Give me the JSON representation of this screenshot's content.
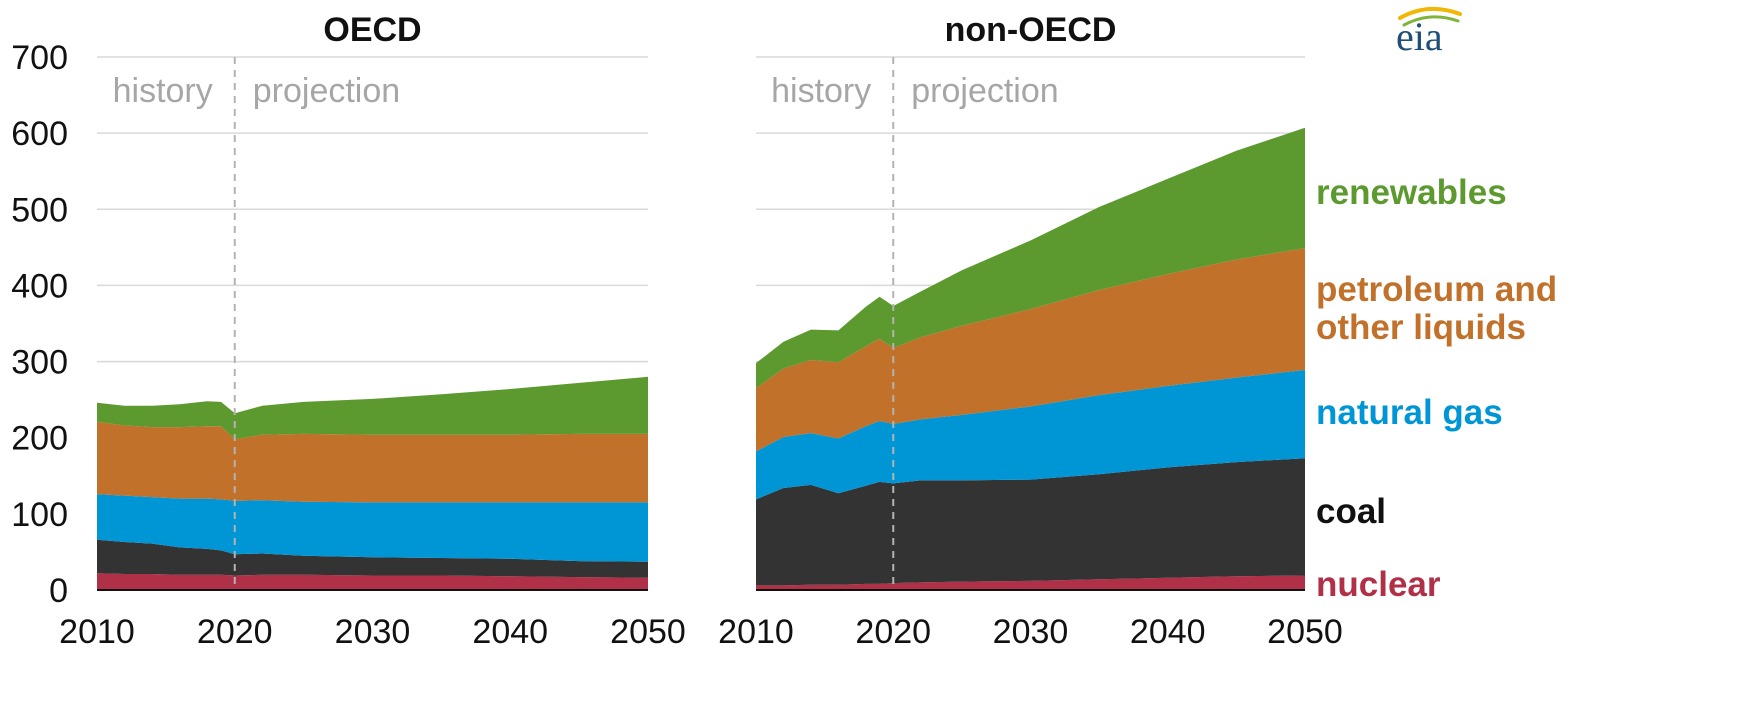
{
  "chart_data": {
    "type": "area",
    "stacked": true,
    "logo": "eia",
    "yticks": [
      0,
      100,
      200,
      300,
      400,
      500,
      600,
      700
    ],
    "ylim": [
      0,
      700
    ],
    "xticks": [
      2010,
      2020,
      2030,
      2040,
      2050
    ],
    "xlim": [
      2010,
      2050
    ],
    "history_end": 2020,
    "legend": [
      {
        "key": "renewables",
        "lines": [
          "renewables"
        ],
        "color": "#5c9a2f"
      },
      {
        "key": "petroleum",
        "lines": [
          "petroleum and",
          "other liquids"
        ],
        "color": "#c1712a"
      },
      {
        "key": "gas",
        "lines": [
          "natural gas"
        ],
        "color": "#0096d6"
      },
      {
        "key": "coal",
        "lines": [
          "coal"
        ],
        "color": "#111111"
      },
      {
        "key": "nuclear",
        "lines": [
          "nuclear"
        ],
        "color": "#b03048"
      }
    ],
    "series_colors": {
      "nuclear": "#b03048",
      "coal": "#333333",
      "gas": "#0096d6",
      "petroleum": "#c1712a",
      "renewables": "#5c9a2f"
    },
    "panels": [
      {
        "title": "OECD",
        "history_label": "history",
        "projection_label": "projection",
        "x": [
          2010,
          2012,
          2014,
          2016,
          2018,
          2019,
          2020,
          2022,
          2025,
          2030,
          2035,
          2040,
          2045,
          2050
        ],
        "series": [
          {
            "name": "nuclear",
            "values": [
              22,
              21,
              21,
              20,
              20,
              20,
              19,
              20,
              20,
              19,
              19,
              18,
              17,
              16
            ]
          },
          {
            "name": "coal",
            "values": [
              44,
              42,
              40,
              36,
              34,
              32,
              28,
              28,
              25,
              24,
              23,
              23,
              21,
              21
            ]
          },
          {
            "name": "natural gas",
            "values": [
              60,
              61,
              61,
              64,
              66,
              67,
              70,
              70,
              71,
              72,
              73,
              74,
              77,
              78
            ]
          },
          {
            "name": "petroleum and other liquids",
            "values": [
              95,
              92,
              92,
              94,
              95,
              96,
              81,
              86,
              89,
              89,
              89,
              89,
              90,
              90
            ]
          },
          {
            "name": "renewables",
            "values": [
              25,
              26,
              28,
              30,
              33,
              32,
              34,
              38,
              42,
              47,
              53,
              60,
              67,
              75
            ]
          }
        ]
      },
      {
        "title": "non-OECD",
        "history_label": "history",
        "projection_label": "projection",
        "x": [
          2010,
          2012,
          2014,
          2016,
          2018,
          2019,
          2020,
          2022,
          2025,
          2030,
          2035,
          2040,
          2045,
          2050
        ],
        "series": [
          {
            "name": "nuclear",
            "values": [
              6,
              6,
              7,
              7,
              8,
              8,
              9,
              10,
              11,
              12,
              14,
              16,
              18,
              19
            ]
          },
          {
            "name": "coal",
            "values": [
              113,
              128,
              131,
              120,
              129,
              134,
              131,
              134,
              133,
              133,
              138,
              145,
              150,
              154
            ]
          },
          {
            "name": "natural gas",
            "values": [
              63,
              67,
              68,
              72,
              78,
              80,
              78,
              80,
              86,
              96,
              104,
              107,
              111,
              116
            ]
          },
          {
            "name": "petroleum and other liquids",
            "values": [
              83,
              90,
              96,
              100,
              105,
              108,
              100,
              108,
              117,
              128,
              138,
              147,
              155,
              160
            ]
          },
          {
            "name": "renewables",
            "values": [
              33,
              35,
              40,
              42,
              52,
              55,
              55,
              60,
              73,
              90,
              109,
              125,
              143,
              158
            ]
          }
        ]
      }
    ]
  }
}
